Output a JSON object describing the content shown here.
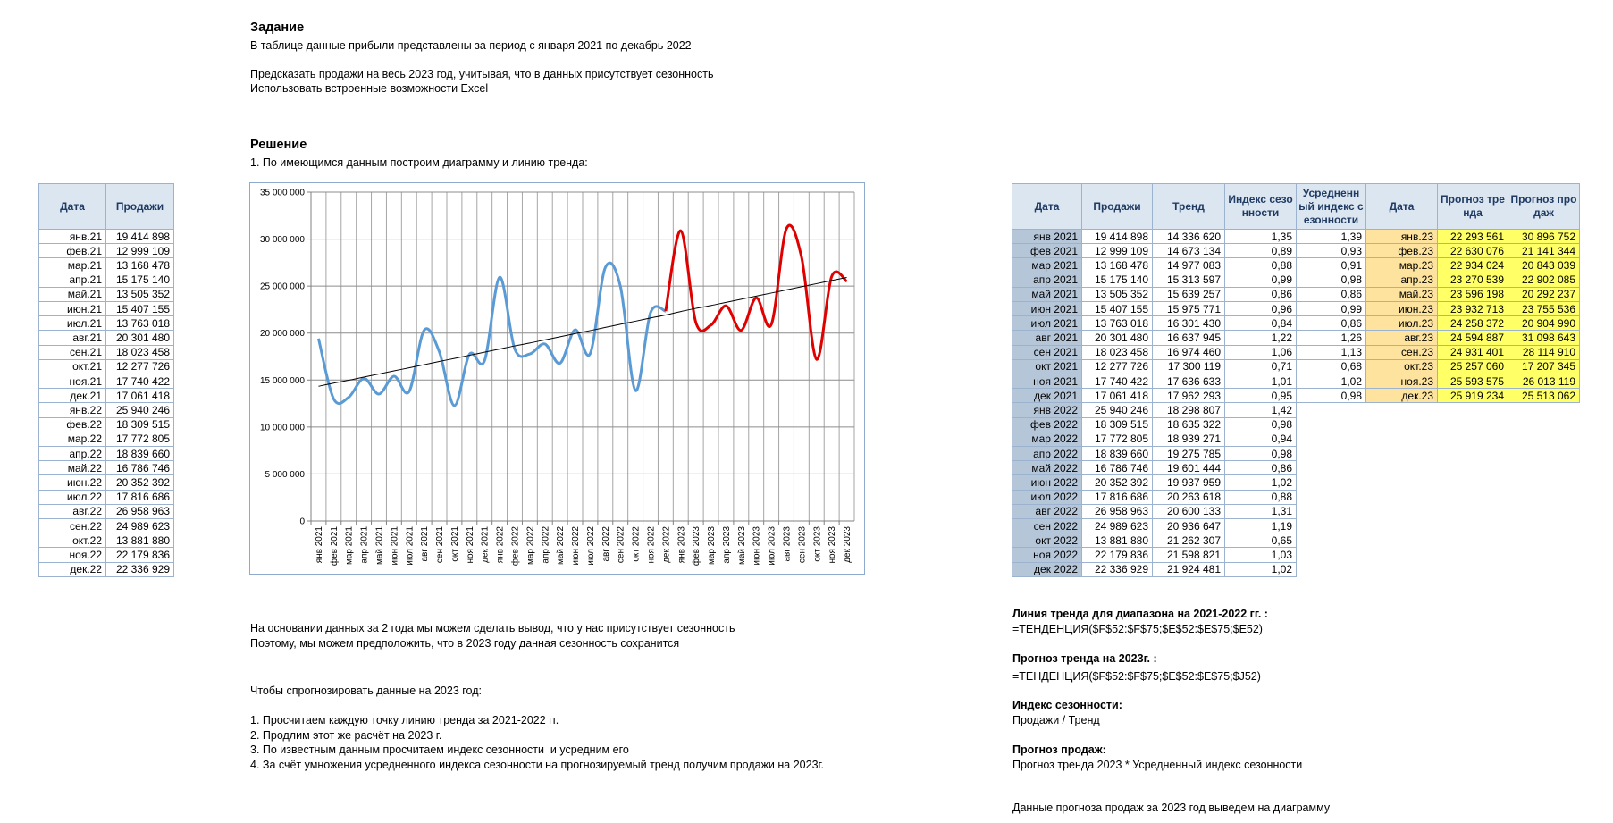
{
  "task": {
    "title": "Задание",
    "lines": [
      "В таблице данные прибыли представлены за период с января 2021 по декабрь 2022",
      "Предсказать продажи на весь 2023 год, учитывая, что в данных присутствует сезонность",
      "Использовать встроенные возможности Excel"
    ]
  },
  "solution": {
    "title": "Решение",
    "step1": "1. По имеющимся данным построим диаграмму и линию тренда:"
  },
  "left_table": {
    "headers": [
      "Дата",
      "Продажи"
    ],
    "rows": [
      [
        "янв.21",
        "19 414 898"
      ],
      [
        "фев.21",
        "12 999 109"
      ],
      [
        "мар.21",
        "13 168 478"
      ],
      [
        "апр.21",
        "15 175 140"
      ],
      [
        "май.21",
        "13 505 352"
      ],
      [
        "июн.21",
        "15 407 155"
      ],
      [
        "июл.21",
        "13 763 018"
      ],
      [
        "авг.21",
        "20 301 480"
      ],
      [
        "сен.21",
        "18 023 458"
      ],
      [
        "окт.21",
        "12 277 726"
      ],
      [
        "ноя.21",
        "17 740 422"
      ],
      [
        "дек.21",
        "17 061 418"
      ],
      [
        "янв.22",
        "25 940 246"
      ],
      [
        "фев.22",
        "18 309 515"
      ],
      [
        "мар.22",
        "17 772 805"
      ],
      [
        "апр.22",
        "18 839 660"
      ],
      [
        "май.22",
        "16 786 746"
      ],
      [
        "июн.22",
        "20 352 392"
      ],
      [
        "июл.22",
        "17 816 686"
      ],
      [
        "авг.22",
        "26 958 963"
      ],
      [
        "сен.22",
        "24 989 623"
      ],
      [
        "окт.22",
        "13 881 880"
      ],
      [
        "ноя.22",
        "22 179 836"
      ],
      [
        "дек.22",
        "22 336 929"
      ]
    ]
  },
  "chart_data": {
    "type": "line",
    "categories": [
      "янв 2021",
      "фев 2021",
      "мар 2021",
      "апр 2021",
      "май 2021",
      "июн 2021",
      "июл 2021",
      "авг 2021",
      "сен 2021",
      "окт 2021",
      "ноя 2021",
      "дек 2021",
      "янв 2022",
      "фев 2022",
      "мар 2022",
      "апр 2022",
      "май 2022",
      "июн 2022",
      "июл 2022",
      "авг 2022",
      "сен 2022",
      "окт 2022",
      "ноя 2022",
      "дек 2022",
      "янв 2023",
      "фев 2023",
      "мар 2023",
      "апр 2023",
      "май 2023",
      "июн 2023",
      "июл 2023",
      "авг 2023",
      "сен 2023",
      "окт 2023",
      "ноя 2023",
      "дек 2023"
    ],
    "series": [
      {
        "color": "#5b9bd5",
        "values": [
          19414898,
          12999109,
          13168478,
          15175140,
          13505352,
          15407155,
          13763018,
          20301480,
          18023458,
          12277726,
          17740422,
          17061418,
          25940246,
          18309515,
          17772805,
          18839660,
          16786746,
          20352392,
          17816686,
          26958963,
          24989623,
          13881880,
          22179836,
          22336929,
          null,
          null,
          null,
          null,
          null,
          null,
          null,
          null,
          null,
          null,
          null,
          null
        ]
      },
      {
        "color": "#e00000",
        "values": [
          null,
          null,
          null,
          null,
          null,
          null,
          null,
          null,
          null,
          null,
          null,
          null,
          null,
          null,
          null,
          null,
          null,
          null,
          null,
          null,
          null,
          null,
          null,
          22336929,
          30896752,
          21141344,
          20843039,
          22902085,
          20292237,
          23755536,
          20904990,
          31098643,
          28114910,
          17207345,
          26013119,
          25513062
        ]
      },
      {
        "color": "#000000",
        "values": [
          14336620,
          14673134,
          14977083,
          15313597,
          15639257,
          15975771,
          16301430,
          16637945,
          16974460,
          17300119,
          17636633,
          17962293,
          18298807,
          18635322,
          18939271,
          19275785,
          19601444,
          19937959,
          20263618,
          20600133,
          20936647,
          21262307,
          21598821,
          21924481,
          22293561,
          22630076,
          22934024,
          23270539,
          23596198,
          23932713,
          24258372,
          24594887,
          24931401,
          25257060,
          25593575,
          25919234
        ]
      }
    ],
    "ylim": [
      0,
      35000000
    ],
    "yticks": [
      0,
      {
        "value": 5000000,
        "label": "5 000 000"
      },
      {
        "value": 10000000,
        "label": "10 000 000"
      },
      {
        "value": 15000000,
        "label": "15 000 000"
      },
      {
        "value": 20000000,
        "label": "20 000 000"
      },
      {
        "value": 25000000,
        "label": "25 000 000"
      },
      {
        "value": 30000000,
        "label": "30 000 000"
      },
      {
        "value": 35000000,
        "label": "35 000 000"
      }
    ],
    "grid": true
  },
  "right_table": {
    "headers": [
      "Дата",
      "Продажи",
      "Тренд",
      "Индекс сезонности",
      "Усредненный индекс сезонности",
      "Дата",
      "Прогноз тренда",
      "Прогноз продаж"
    ],
    "rows": [
      [
        "янв 2021",
        "19 414 898",
        "14 336 620",
        "1,35",
        "1,39",
        "янв.23",
        "22 293 561",
        "30 896 752"
      ],
      [
        "фев 2021",
        "12 999 109",
        "14 673 134",
        "0,89",
        "0,93",
        "фев.23",
        "22 630 076",
        "21 141 344"
      ],
      [
        "мар 2021",
        "13 168 478",
        "14 977 083",
        "0,88",
        "0,91",
        "мар.23",
        "22 934 024",
        "20 843 039"
      ],
      [
        "апр 2021",
        "15 175 140",
        "15 313 597",
        "0,99",
        "0,98",
        "апр.23",
        "23 270 539",
        "22 902 085"
      ],
      [
        "май 2021",
        "13 505 352",
        "15 639 257",
        "0,86",
        "0,86",
        "май.23",
        "23 596 198",
        "20 292 237"
      ],
      [
        "июн 2021",
        "15 407 155",
        "15 975 771",
        "0,96",
        "0,99",
        "июн.23",
        "23 932 713",
        "23 755 536"
      ],
      [
        "июл 2021",
        "13 763 018",
        "16 301 430",
        "0,84",
        "0,86",
        "июл.23",
        "24 258 372",
        "20 904 990"
      ],
      [
        "авг 2021",
        "20 301 480",
        "16 637 945",
        "1,22",
        "1,26",
        "авг.23",
        "24 594 887",
        "31 098 643"
      ],
      [
        "сен 2021",
        "18 023 458",
        "16 974 460",
        "1,06",
        "1,13",
        "сен.23",
        "24 931 401",
        "28 114 910"
      ],
      [
        "окт 2021",
        "12 277 726",
        "17 300 119",
        "0,71",
        "0,68",
        "окт.23",
        "25 257 060",
        "17 207 345"
      ],
      [
        "ноя 2021",
        "17 740 422",
        "17 636 633",
        "1,01",
        "1,02",
        "ноя.23",
        "25 593 575",
        "26 013 119"
      ],
      [
        "дек 2021",
        "17 061 418",
        "17 962 293",
        "0,95",
        "0,98",
        "дек.23",
        "25 919 234",
        "25 513 062"
      ],
      [
        "янв 2022",
        "25 940 246",
        "18 298 807",
        "1,42"
      ],
      [
        "фев 2022",
        "18 309 515",
        "18 635 322",
        "0,98"
      ],
      [
        "мар 2022",
        "17 772 805",
        "18 939 271",
        "0,94"
      ],
      [
        "апр 2022",
        "18 839 660",
        "19 275 785",
        "0,98"
      ],
      [
        "май 2022",
        "16 786 746",
        "19 601 444",
        "0,86"
      ],
      [
        "июн 2022",
        "20 352 392",
        "19 937 959",
        "1,02"
      ],
      [
        "июл 2022",
        "17 816 686",
        "20 263 618",
        "0,88"
      ],
      [
        "авг 2022",
        "26 958 963",
        "20 600 133",
        "1,31"
      ],
      [
        "сен 2022",
        "24 989 623",
        "20 936 647",
        "1,19"
      ],
      [
        "окт 2022",
        "13 881 880",
        "21 262 307",
        "0,65"
      ],
      [
        "ноя 2022",
        "22 179 836",
        "21 598 821",
        "1,03"
      ],
      [
        "дек 2022",
        "22 336 929",
        "21 924 481",
        "1,02"
      ]
    ]
  },
  "conclusion": {
    "lines": [
      "На основании данных за 2 года мы можем сделать вывод, что у нас присутствует сезонность",
      "Поэтому, мы можем предположить, что в 2023 году данная сезонность сохранится",
      "Чтобы спрогнозировать данные на 2023 год:",
      "1. Просчитаем каждую точку линию тренда за 2021-2022 гг.",
      "2. Продлим этот же расчёт на 2023 г.",
      "3. По известным данным просчитаем индекс сезонности  и усредним его",
      "4. За счёт умножения усредненного индекса сезонности на прогнозируемый тренд получим продажи на 2023г."
    ]
  },
  "notes": [
    {
      "title": "Линия тренда для диапазона на 2021-2022 гг. :",
      "text": "=ТЕНДЕНЦИЯ($F$52:$F$75;$E$52:$E$75;$E52)"
    },
    {
      "title": "Прогноз тренда на 2023г. :",
      "text": "=ТЕНДЕНЦИЯ($F$52:$F$75;$E$52:$E$75;$J52)"
    },
    {
      "title": "Индекс сезонности:",
      "text": "Продажи / Тренд"
    },
    {
      "title": "Прогноз продаж:",
      "text": "Прогноз тренда 2023 * Усредненный индекс сезонности"
    }
  ],
  "final": "Данные прогноза продаж за 2023 год выведем на диаграмму"
}
